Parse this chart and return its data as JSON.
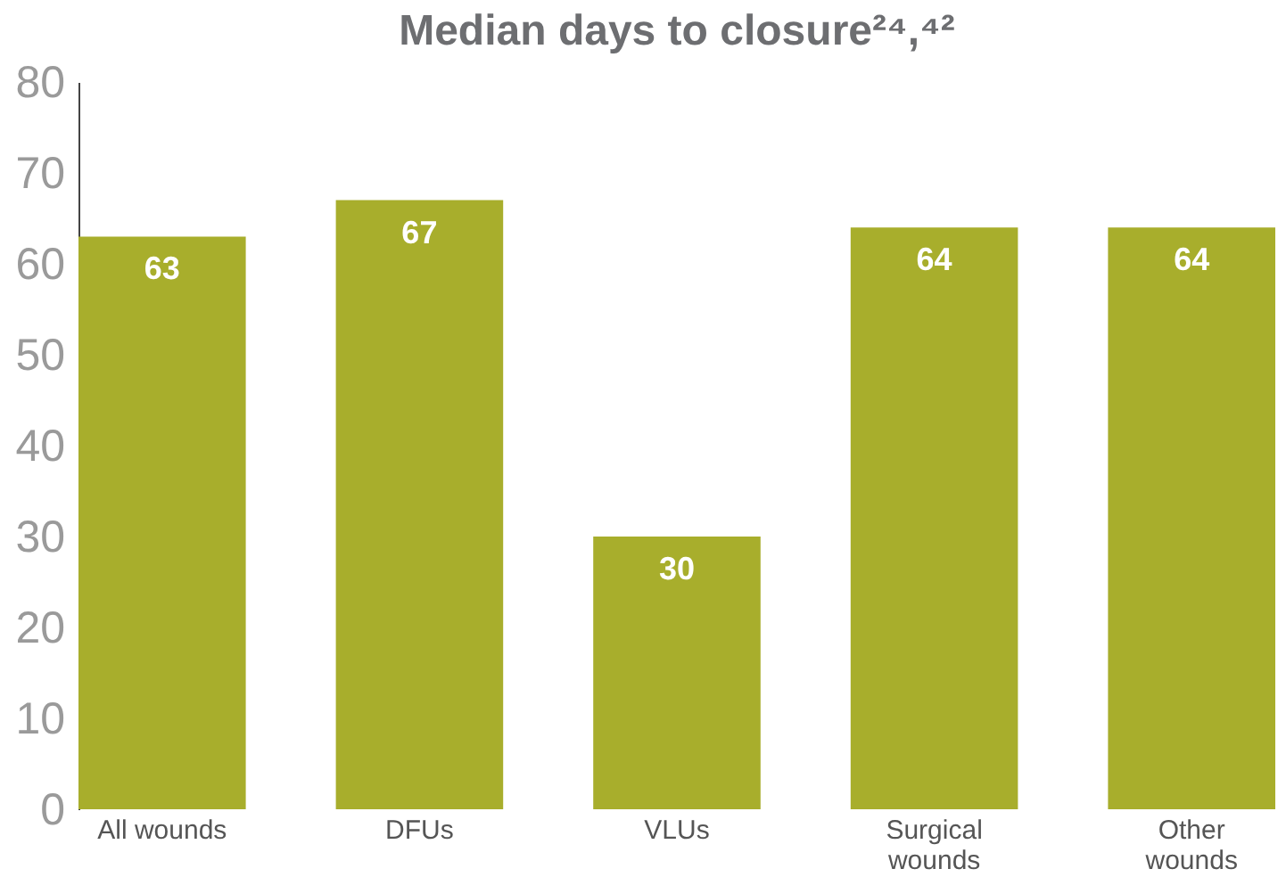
{
  "chart_data": {
    "type": "bar",
    "title": "Median days to closure²⁴,⁴²",
    "categories": [
      "All wounds",
      "DFUs",
      "VLUs",
      "Surgical wounds",
      "Other wounds"
    ],
    "values": [
      63,
      67,
      30,
      64,
      64
    ],
    "color": "#a8ae2c",
    "ylim": [
      0,
      80
    ],
    "yticks": [
      0,
      10,
      20,
      30,
      40,
      50,
      60,
      70,
      80
    ],
    "grid": false,
    "data_labels": true
  }
}
